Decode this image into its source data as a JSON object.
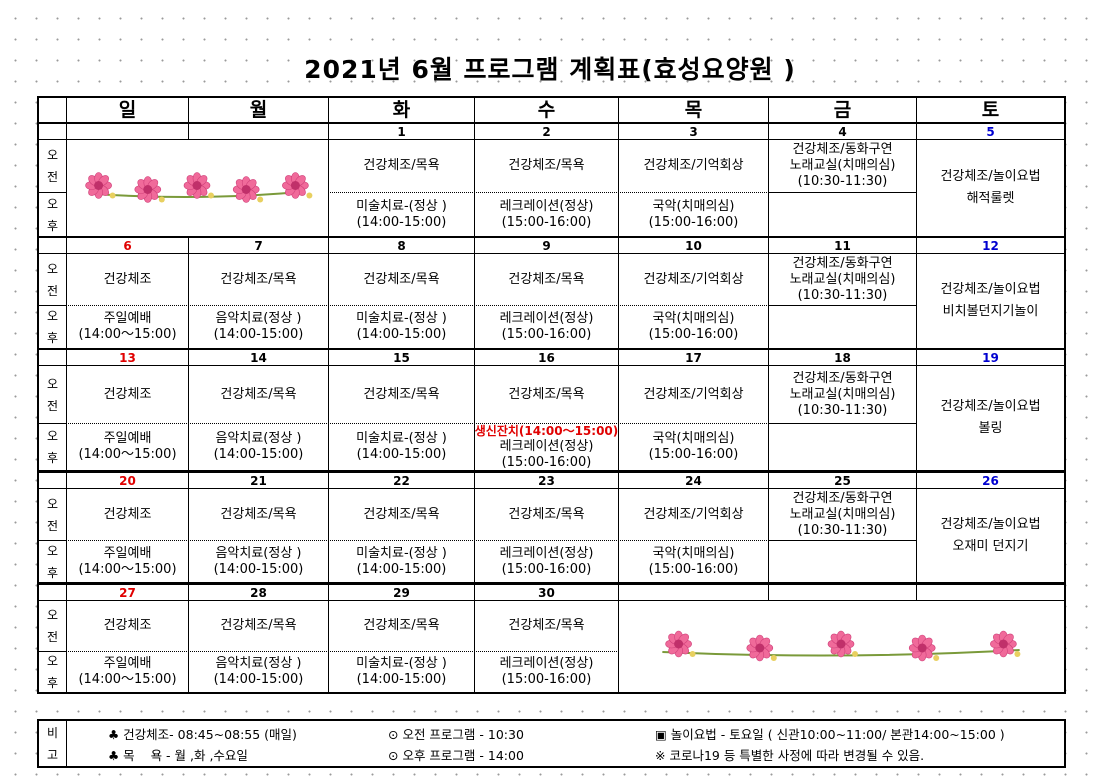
{
  "title": "2021년 6월 프로그램 계획표(효성요양원 )",
  "days": [
    "일",
    "월",
    "화",
    "수",
    "목",
    "금",
    "토"
  ],
  "side": {
    "am": [
      "오",
      "전"
    ],
    "pm": [
      "오",
      "후"
    ]
  },
  "weeks": [
    {
      "dates": [
        null,
        null,
        1,
        2,
        3,
        4,
        5
      ],
      "am": [
        null,
        null,
        [
          "건강체조/목욕"
        ],
        [
          "건강체조/목욕"
        ],
        [
          "건강체조/기억회상"
        ],
        [
          "건강체조/동화구연",
          "노래교실(치매의심)",
          "(10:30-11:30)"
        ],
        [
          "건강체조/놀이요법",
          "해적룰렛"
        ]
      ],
      "pm": [
        null,
        null,
        [
          "미술치료-(정상 )",
          "(14:00-15:00)"
        ],
        [
          "레크레이션(정상)",
          "(15:00-16:00)"
        ],
        [
          "국악(치매의심)",
          "(15:00-16:00)"
        ],
        null,
        null
      ]
    },
    {
      "dates": [
        6,
        7,
        8,
        9,
        10,
        11,
        12
      ],
      "am": [
        [
          "건강체조"
        ],
        [
          "건강체조/목욕"
        ],
        [
          "건강체조/목욕"
        ],
        [
          "건강체조/목욕"
        ],
        [
          "건강체조/기억회상"
        ],
        [
          "건강체조/동화구연",
          "노래교실(치매의심)",
          "(10:30-11:30)"
        ],
        [
          "건강체조/놀이요법",
          "비치볼던지기놀이"
        ]
      ],
      "pm": [
        [
          "주일예배",
          "(14:00～15:00)"
        ],
        [
          "음악치료(정상 )",
          "(14:00-15:00)"
        ],
        [
          "미술치료-(정상 )",
          "(14:00-15:00)"
        ],
        [
          "레크레이션(정상)",
          "(15:00-16:00)"
        ],
        [
          "국악(치매의심)",
          "(15:00-16:00)"
        ],
        null,
        null
      ]
    },
    {
      "dates": [
        13,
        14,
        15,
        16,
        17,
        18,
        19
      ],
      "am": [
        [
          "건강체조"
        ],
        [
          "건강체조/목욕"
        ],
        [
          "건강체조/목욕"
        ],
        [
          "건강체조/목욕"
        ],
        [
          "건강체조/기억회상"
        ],
        [
          "건강체조/동화구연",
          "노래교실(치매의심)",
          "(10:30-11:30)"
        ],
        [
          "건강체조/놀이요법",
          "볼링"
        ]
      ],
      "pm": [
        [
          "주일예배",
          "(14:00～15:00)"
        ],
        [
          "음악치료(정상 )",
          "(14:00-15:00)"
        ],
        [
          "미술치료-(정상 )",
          "(14:00-15:00)"
        ],
        [
          {
            "text": "생신잔치(14:00～15:00)",
            "color": "#e00000"
          },
          "레크레이션(정상)",
          "(15:00-16:00)"
        ],
        [
          "국악(치매의심)",
          "(15:00-16:00)"
        ],
        null,
        null
      ]
    },
    {
      "dates": [
        20,
        21,
        22,
        23,
        24,
        25,
        26
      ],
      "am": [
        [
          "건강체조"
        ],
        [
          "건강체조/목욕"
        ],
        [
          "건강체조/목욕"
        ],
        [
          "건강체조/목욕"
        ],
        [
          "건강체조/기억회상"
        ],
        [
          "건강체조/동화구연",
          "노래교실(치매의심)",
          "(10:30-11:30)"
        ],
        [
          "건강체조/놀이요법",
          "오재미 던지기"
        ]
      ],
      "pm": [
        [
          "주일예배",
          "(14:00～15:00)"
        ],
        [
          "음악치료(정상 )",
          "(14:00-15:00)"
        ],
        [
          "미술치료-(정상 )",
          "(14:00-15:00)"
        ],
        [
          "레크레이션(정상)",
          "(15:00-16:00)"
        ],
        [
          "국악(치매의심)",
          "(15:00-16:00)"
        ],
        null,
        null
      ]
    },
    {
      "dates": [
        27,
        28,
        29,
        30,
        null,
        null,
        null
      ],
      "am": [
        [
          "건강체조"
        ],
        [
          "건강체조/목욕"
        ],
        [
          "건강체조/목욕"
        ],
        [
          "건강체조/목욕"
        ],
        null,
        null,
        null
      ],
      "pm": [
        [
          "주일예배",
          "(14:00～15:00)"
        ],
        [
          "음악치료(정상 )",
          "(14:00-15:00)"
        ],
        [
          "미술치료-(정상 )",
          "(14:00-15:00)"
        ],
        [
          "레크레이션(정상)",
          "(15:00-16:00)"
        ],
        null,
        null,
        null
      ]
    }
  ],
  "footer": {
    "label": [
      "비",
      "고"
    ],
    "items": [
      "♣ 건강체조- 08:45~08:55 (매일)",
      "♣ 목    욕 - 월 ,화 ,수요일",
      "⊙ 오전 프로그램 - 10:30",
      "⊙ 오후 프로그램 - 14:00",
      "▣ 놀이요법 - 토요일 ( 신관10:00~11:00/ 본관14:00~15:00 )",
      "※ 코로나19 등 특별한 사정에 따라 변경될 수 있음."
    ]
  }
}
